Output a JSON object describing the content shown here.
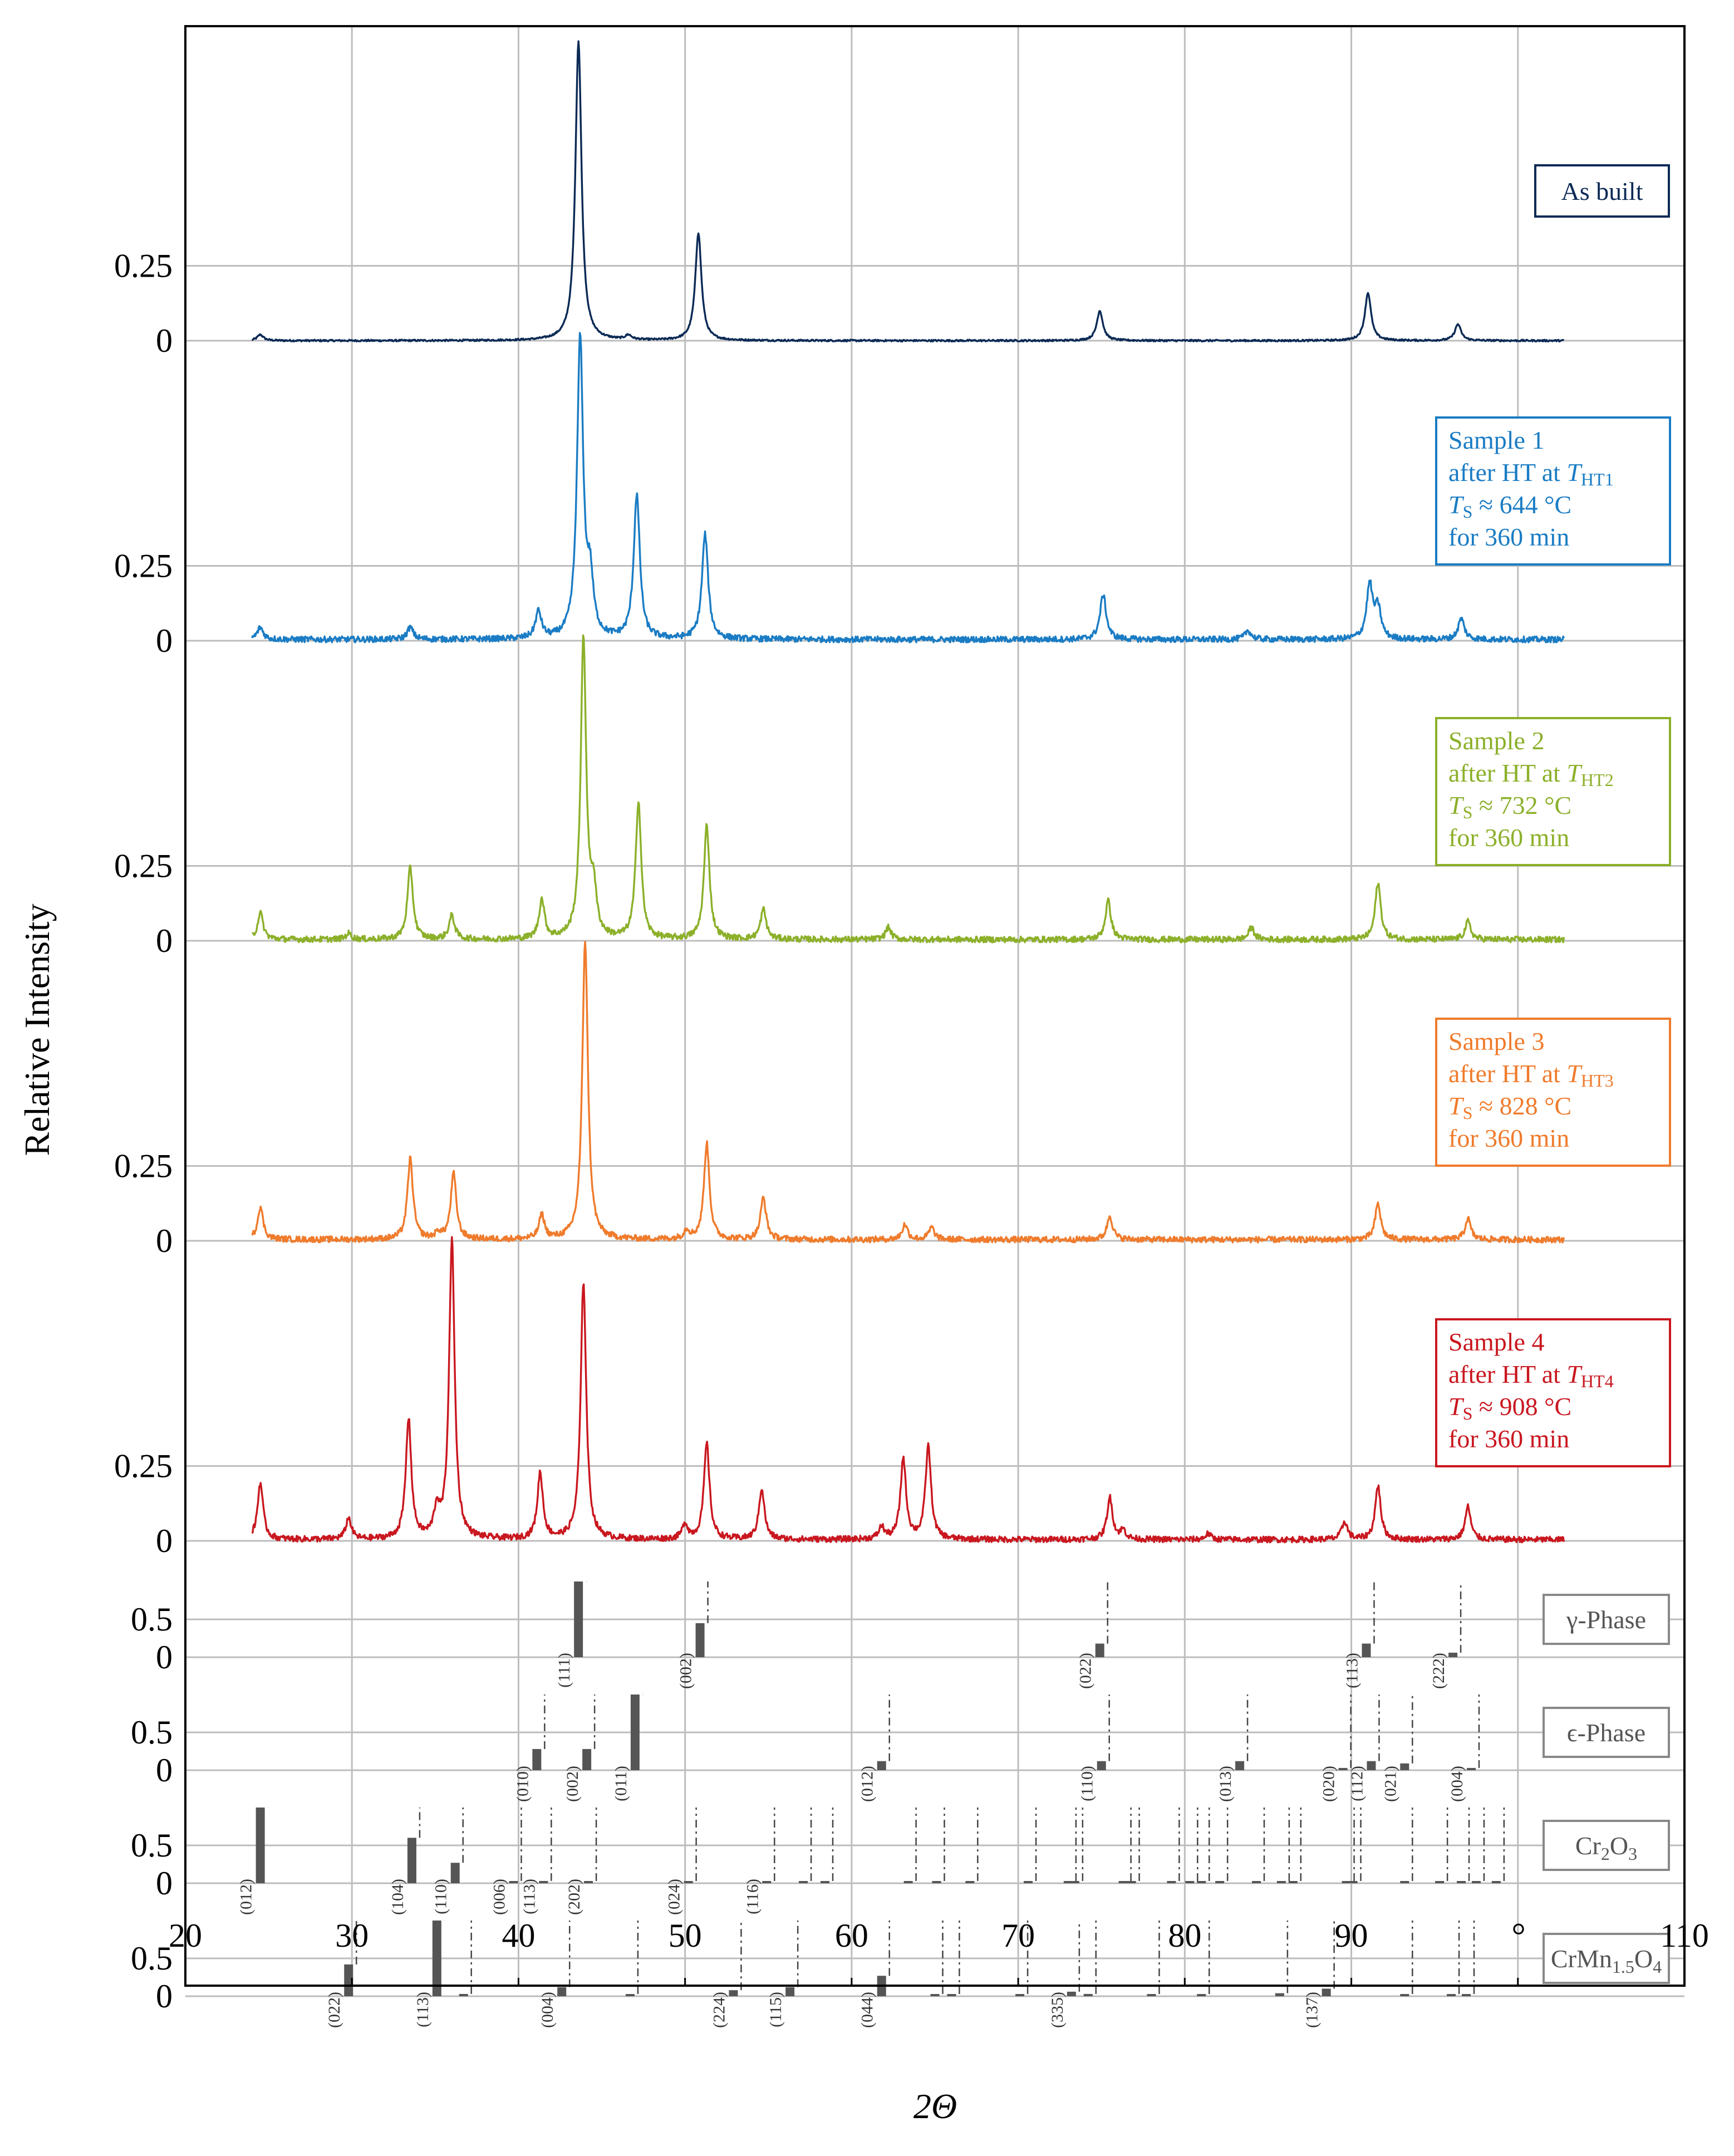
{
  "chart_data": {
    "type": "line",
    "xlabel": "2Θ",
    "xunit": "°",
    "ylabel": "Relative Intensity",
    "xlim": [
      20,
      110
    ],
    "xticks": [
      20,
      30,
      40,
      50,
      60,
      70,
      80,
      90,
      100,
      110
    ],
    "xtick_labels": [
      "20",
      "30",
      "40",
      "50",
      "60",
      "70",
      "80",
      "90",
      "",
      "110"
    ],
    "grid": true,
    "colors": {
      "as_built": "#0b2a55",
      "sample1": "#1a7cc4",
      "sample2": "#8cb02a",
      "sample3": "#ef7b2c",
      "sample4": "#c9171f",
      "reference": "#555555"
    },
    "series": [
      {
        "key": "as_built",
        "name": "As built",
        "legend": {
          "lines": [
            "As built"
          ]
        },
        "ytick_labels": [
          "0",
          "0.25"
        ],
        "ytick_values": [
          0,
          0.25
        ],
        "peaks": [
          [
            24.5,
            0.02
          ],
          [
            43.6,
            1.0
          ],
          [
            46.6,
            0.015
          ],
          [
            50.8,
            0.36
          ],
          [
            74.9,
            0.1
          ],
          [
            91.0,
            0.16
          ],
          [
            96.4,
            0.055
          ]
        ]
      },
      {
        "key": "sample1",
        "name": "Sample 1",
        "legend": {
          "lines": [
            "Sample 1",
            "after HT at ",
            "T",
            "S",
            " ≈ 644 °C",
            "for 360 min"
          ],
          "sub": "HT1"
        },
        "ytick_labels": [
          "0",
          "0.25"
        ],
        "ytick_values": [
          0,
          0.25
        ],
        "peaks": [
          [
            24.5,
            0.04
          ],
          [
            33.5,
            0.04
          ],
          [
            41.2,
            0.09
          ],
          [
            43.7,
            1.0
          ],
          [
            44.3,
            0.18
          ],
          [
            47.1,
            0.48
          ],
          [
            51.2,
            0.35
          ],
          [
            75.1,
            0.15
          ],
          [
            83.8,
            0.03
          ],
          [
            91.1,
            0.18
          ],
          [
            91.6,
            0.1
          ],
          [
            96.6,
            0.07
          ]
        ]
      },
      {
        "key": "sample2",
        "name": "Sample 2",
        "legend": {
          "lines": [
            "Sample 2",
            "after HT at ",
            "T",
            "S",
            " ≈ 732 °C",
            "for 360 min"
          ],
          "sub": "HT2"
        },
        "ytick_labels": [
          "0",
          "0.25"
        ],
        "ytick_values": [
          0,
          0.25
        ],
        "peaks": [
          [
            24.5,
            0.09
          ],
          [
            29.8,
            0.02
          ],
          [
            33.5,
            0.24
          ],
          [
            36.0,
            0.08
          ],
          [
            41.4,
            0.13
          ],
          [
            43.9,
            1.0
          ],
          [
            44.5,
            0.15
          ],
          [
            47.2,
            0.46
          ],
          [
            51.3,
            0.38
          ],
          [
            54.7,
            0.1
          ],
          [
            62.2,
            0.04
          ],
          [
            75.4,
            0.13
          ],
          [
            84.0,
            0.04
          ],
          [
            91.6,
            0.19
          ],
          [
            97.0,
            0.06
          ]
        ]
      },
      {
        "key": "sample3",
        "name": "Sample 3",
        "legend": {
          "lines": [
            "Sample 3",
            "after HT at ",
            "T",
            "S",
            " ≈ 828 °C",
            "for 360 min"
          ],
          "sub": "HT3"
        },
        "ytick_labels": [
          "0",
          "0.25"
        ],
        "ytick_values": [
          0,
          0.25
        ],
        "peaks": [
          [
            24.5,
            0.11
          ],
          [
            33.5,
            0.27
          ],
          [
            35.2,
            0.02
          ],
          [
            36.1,
            0.22
          ],
          [
            41.4,
            0.08
          ],
          [
            44.0,
            1.0
          ],
          [
            50.1,
            0.03
          ],
          [
            51.3,
            0.32
          ],
          [
            54.7,
            0.14
          ],
          [
            63.2,
            0.05
          ],
          [
            64.8,
            0.04
          ],
          [
            75.5,
            0.08
          ],
          [
            91.6,
            0.12
          ],
          [
            97.0,
            0.07
          ]
        ]
      },
      {
        "key": "sample4",
        "name": "Sample 4",
        "legend": {
          "lines": [
            "Sample 4",
            "after HT at ",
            "T",
            "S",
            " ≈ 908 °C",
            "for 360 min"
          ],
          "sub": "HT4"
        },
        "ytick_labels": [
          "0",
          "0.25"
        ],
        "ytick_values": [
          0,
          0.25
        ],
        "peaks": [
          [
            24.5,
            0.19
          ],
          [
            29.8,
            0.07
          ],
          [
            33.4,
            0.4
          ],
          [
            35.1,
            0.09
          ],
          [
            36.0,
            1.0
          ],
          [
            41.3,
            0.22
          ],
          [
            43.9,
            0.86
          ],
          [
            50.0,
            0.05
          ],
          [
            51.3,
            0.32
          ],
          [
            54.6,
            0.17
          ],
          [
            61.8,
            0.04
          ],
          [
            63.1,
            0.27
          ],
          [
            64.6,
            0.31
          ],
          [
            75.5,
            0.14
          ],
          [
            76.3,
            0.03
          ],
          [
            81.4,
            0.02
          ],
          [
            89.6,
            0.06
          ],
          [
            91.6,
            0.18
          ],
          [
            97.0,
            0.11
          ]
        ]
      }
    ],
    "reference_panels": [
      {
        "name": "γ-Phase",
        "ytick_labels": [
          "0",
          "0.5"
        ],
        "reflections": [
          {
            "x": 43.6,
            "h": 1.0,
            "label": "(111)"
          },
          {
            "x": 50.9,
            "h": 0.45,
            "label": "(002)"
          },
          {
            "x": 74.9,
            "h": 0.18,
            "label": "(022)"
          },
          {
            "x": 90.9,
            "h": 0.18,
            "label": "(113)"
          },
          {
            "x": 96.1,
            "h": 0.06,
            "label": "(222)"
          }
        ]
      },
      {
        "name": "ϵ-Phase",
        "ytick_labels": [
          "0",
          "0.5"
        ],
        "reflections": [
          {
            "x": 41.1,
            "h": 0.28,
            "label": "(010)"
          },
          {
            "x": 44.1,
            "h": 0.28,
            "label": "(002)"
          },
          {
            "x": 47.0,
            "h": 1.0,
            "label": "(011)"
          },
          {
            "x": 61.8,
            "h": 0.12,
            "label": "(012)"
          },
          {
            "x": 75.0,
            "h": 0.12,
            "label": "(110)"
          },
          {
            "x": 83.3,
            "h": 0.12,
            "label": "(013)"
          },
          {
            "x": 89.5,
            "h": 0.03,
            "label": "(020)"
          },
          {
            "x": 91.2,
            "h": 0.12,
            "label": "(112)"
          },
          {
            "x": 93.2,
            "h": 0.09,
            "label": "(021)"
          },
          {
            "x": 97.2,
            "h": 0.03,
            "label": "(004)"
          }
        ]
      },
      {
        "name": "Cr2O3",
        "name_parts": [
          "Cr",
          "2",
          "O",
          "3"
        ],
        "ytick_labels": [
          "0",
          "0.5"
        ],
        "reflections": [
          {
            "x": 24.5,
            "h": 1.0,
            "label": "(012)"
          },
          {
            "x": 33.6,
            "h": 0.6,
            "label": "(104)"
          },
          {
            "x": 36.2,
            "h": 0.27,
            "label": "(110)"
          },
          {
            "x": 39.7,
            "h": 0.02,
            "label": "(006)"
          },
          {
            "x": 41.5,
            "h": 0.03,
            "label": "(113)"
          },
          {
            "x": 44.2,
            "h": 0.02,
            "label": "(202)"
          },
          {
            "x": 50.2,
            "h": 0.02,
            "label": "(024)"
          },
          {
            "x": 54.9,
            "h": 0.02,
            "label": "(116)"
          },
          {
            "x": 57.1,
            "h": 0.02
          },
          {
            "x": 58.4,
            "h": 0.02
          },
          {
            "x": 63.4,
            "h": 0.02
          },
          {
            "x": 65.1,
            "h": 0.02
          },
          {
            "x": 67.1,
            "h": 0.02
          },
          {
            "x": 70.6,
            "h": 0.02
          },
          {
            "x": 73.0,
            "h": 0.02
          },
          {
            "x": 73.4,
            "h": 0.02
          },
          {
            "x": 76.3,
            "h": 0.02
          },
          {
            "x": 76.8,
            "h": 0.02
          },
          {
            "x": 79.2,
            "h": 0.02
          },
          {
            "x": 80.3,
            "h": 0.02
          },
          {
            "x": 81.0,
            "h": 0.02
          },
          {
            "x": 82.1,
            "h": 0.02
          },
          {
            "x": 84.3,
            "h": 0.02
          },
          {
            "x": 85.8,
            "h": 0.02
          },
          {
            "x": 86.5,
            "h": 0.02
          },
          {
            "x": 89.7,
            "h": 0.02
          },
          {
            "x": 90.1,
            "h": 0.02
          },
          {
            "x": 93.2,
            "h": 0.02
          },
          {
            "x": 95.3,
            "h": 0.02
          },
          {
            "x": 96.6,
            "h": 0.02
          },
          {
            "x": 97.5,
            "h": 0.02
          },
          {
            "x": 98.7,
            "h": 0.02
          }
        ]
      },
      {
        "name": "CrMn1.5O4",
        "name_parts": [
          "CrMn",
          "1.5",
          "O",
          "4"
        ],
        "ytick_labels": [
          "0",
          "0.5"
        ],
        "reflections": [
          {
            "x": 29.8,
            "h": 0.42,
            "label": "(022)"
          },
          {
            "x": 35.1,
            "h": 1.0,
            "label": "(113)"
          },
          {
            "x": 36.7,
            "h": 0.03
          },
          {
            "x": 42.6,
            "h": 0.12,
            "label": "(004)"
          },
          {
            "x": 46.7,
            "h": 0.02
          },
          {
            "x": 52.9,
            "h": 0.08,
            "label": "(224)"
          },
          {
            "x": 56.3,
            "h": 0.12,
            "label": "(115)"
          },
          {
            "x": 61.8,
            "h": 0.27,
            "label": "(044)"
          },
          {
            "x": 65.0,
            "h": 0.02
          },
          {
            "x": 66.0,
            "h": 0.02
          },
          {
            "x": 70.1,
            "h": 0.02
          },
          {
            "x": 73.2,
            "h": 0.06,
            "label": "(335)"
          },
          {
            "x": 74.2,
            "h": 0.03
          },
          {
            "x": 78.0,
            "h": 0.02
          },
          {
            "x": 81.0,
            "h": 0.02
          },
          {
            "x": 85.7,
            "h": 0.04
          },
          {
            "x": 88.5,
            "h": 0.1,
            "label": "(137)"
          },
          {
            "x": 93.2,
            "h": 0.02
          },
          {
            "x": 96.0,
            "h": 0.02
          },
          {
            "x": 96.9,
            "h": 0.02
          }
        ]
      }
    ]
  }
}
